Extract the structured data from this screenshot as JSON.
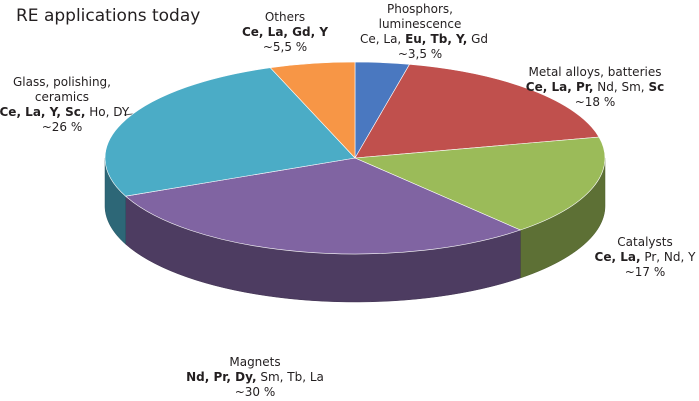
{
  "chart_data": {
    "type": "pie",
    "title": "RE applications today",
    "categories": [
      "Phosphors, luminescence",
      "Metal alloys, batteries",
      "Catalysts",
      "Magnets",
      "Glass, polishing, ceramics",
      "Others"
    ],
    "values": [
      3.5,
      18,
      17,
      30,
      26,
      5.5
    ],
    "value_labels": [
      "~3,5 %",
      "~18 %",
      "~17 %",
      "~30 %",
      "~26 %",
      "~5,5 %"
    ],
    "elements": [
      [
        {
          "text": "Ce, La, ",
          "bold": false
        },
        {
          "text": "Eu, Tb, Y,",
          "bold": true
        },
        {
          "text": " Gd",
          "bold": false
        }
      ],
      [
        {
          "text": "Ce, La, Pr,",
          "bold": true
        },
        {
          "text": " Nd, Sm, ",
          "bold": false
        },
        {
          "text": "Sc",
          "bold": true
        }
      ],
      [
        {
          "text": "Ce, La,",
          "bold": true
        },
        {
          "text": " Pr, Nd, Y",
          "bold": false
        }
      ],
      [
        {
          "text": "Nd, Pr, Dy,",
          "bold": true
        },
        {
          "text": " Sm, Tb, La",
          "bold": false
        }
      ],
      [
        {
          "text": "Ce, La, Y, Sc,",
          "bold": true
        },
        {
          "text": " Ho, DY",
          "bold": false
        }
      ],
      [
        {
          "text": "Ce, La, Gd, Y",
          "bold": true
        }
      ]
    ],
    "colors": [
      "#4a78c0",
      "#c0504d",
      "#9bbb59",
      "#8064a2",
      "#4bacc6",
      "#f79646"
    ]
  }
}
